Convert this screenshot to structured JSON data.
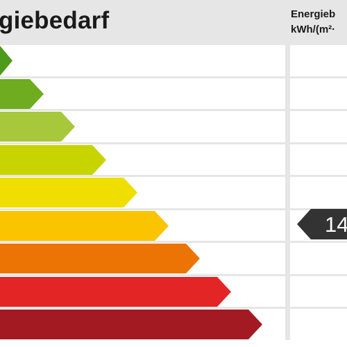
{
  "header": {
    "title": "giebedarf",
    "unit_line1": "Energieb",
    "unit_line2": "kWh/(m²·"
  },
  "classes": [
    {
      "color": "#4e9a1b",
      "level": 1
    },
    {
      "color": "#6fac1f",
      "level": 2
    },
    {
      "color": "#a8c83b",
      "level": 3
    },
    {
      "color": "#c8d400",
      "level": 4
    },
    {
      "color": "#f0de00",
      "level": 5
    },
    {
      "color": "#fbc400",
      "level": 6
    },
    {
      "color": "#ec7404",
      "level": 7
    },
    {
      "color": "#e32526",
      "level": 8
    },
    {
      "color": "#a31a23",
      "level": 9
    }
  ],
  "indicator": {
    "value": "14",
    "row": 6,
    "color": "#333333"
  }
}
